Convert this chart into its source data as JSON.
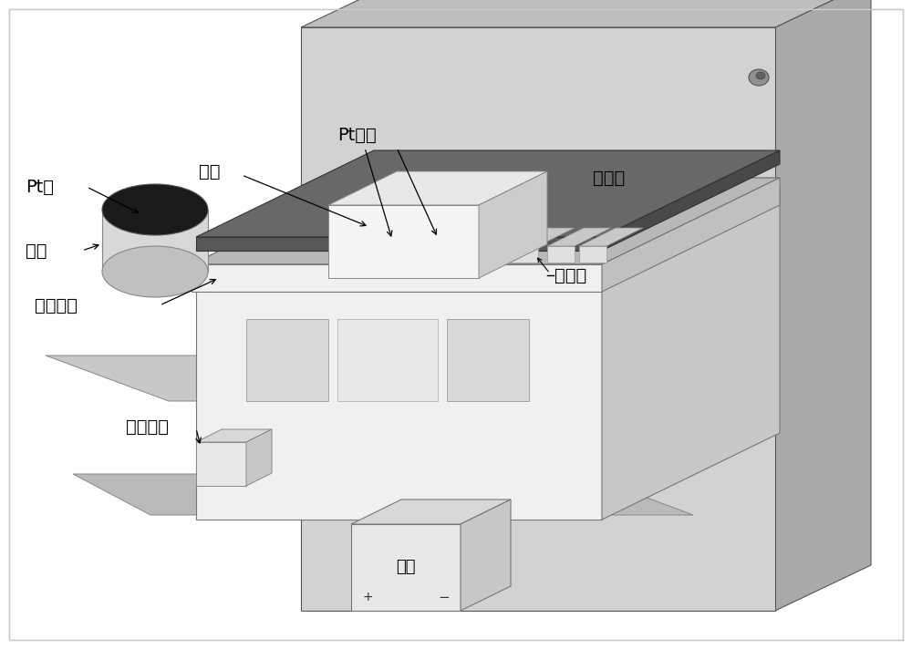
{
  "bg": "#ffffff",
  "font_size": 14,
  "labels": {
    "pt_paste": "Pt浆",
    "sample": "样品",
    "zirconia": "锆砖",
    "pt_electrode": "Pt电极",
    "furnace_wall": "电炉壁",
    "separator": "隔离棒",
    "support_zirconia": "支撑锆砖",
    "protection_resistor": "保护电阻",
    "power_supply": "电源"
  },
  "colors": {
    "wall_front": "#d2d2d2",
    "wall_side": "#aaaaaa",
    "wall_top": "#bebebe",
    "box_front": "#f0f0f0",
    "box_side": "#c8c8c8",
    "box_top": "#e0e0e0",
    "dark_plate": "#585858",
    "dark_plate_top": "#686868",
    "white_block_front": "#f5f5f5",
    "white_block_side": "#cccccc",
    "white_block_top": "#e8e8e8",
    "floor1": "#c8c8c8",
    "floor2": "#bababa",
    "slab_front": "#f0f0f0",
    "slab_side": "#c0c0c0",
    "slab_top": "#b8b8b8",
    "cyl_side": "#d8d8d8",
    "cyl_bottom": "#c0c0c0",
    "cyl_top": "#1a1a1a",
    "ps_front": "#e8e8e8",
    "ps_side": "#c8c8c8",
    "ps_top": "#d8d8d8",
    "pr_front": "#e8e8e8",
    "pr_side": "#c8c8c8",
    "pr_top": "#d8d8d8",
    "shadow": "#b8b8b8",
    "edge": "#666666",
    "dark_edge": "#444444"
  }
}
